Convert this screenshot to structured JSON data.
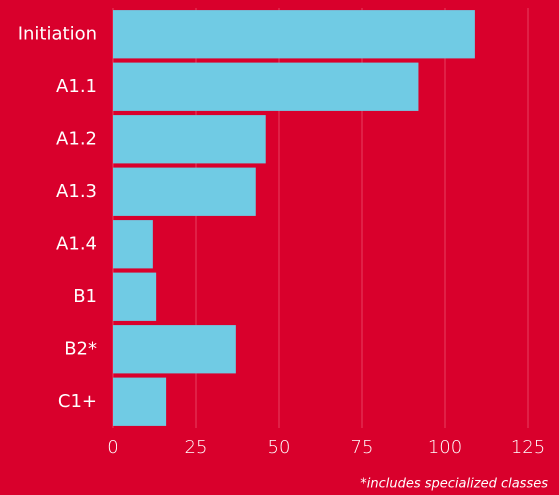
{
  "chart_data": {
    "type": "hbar",
    "categories": [
      "Initiation",
      "A1.1",
      "A1.2",
      "A1.3",
      "A1.4",
      "B1",
      "B2*",
      "C1+"
    ],
    "values": [
      109,
      92,
      46,
      43,
      12,
      13,
      37,
      16
    ],
    "color": "#70cbe4",
    "xlim": [
      0,
      125
    ],
    "xticks": [
      0,
      25,
      50,
      75,
      100,
      125
    ],
    "grid": true,
    "note": "*includes specialized classes"
  }
}
